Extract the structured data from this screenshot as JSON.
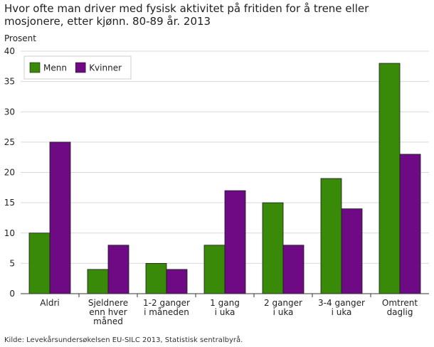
{
  "chart_data": {
    "type": "bar",
    "title": "Hvor ofte man driver med fysisk aktivitet på fritiden for å trene eller mosjonere, etter kjønn. 80-89 år. 2013",
    "ylabel": "Prosent",
    "xlabel": "",
    "ylim": [
      0,
      40
    ],
    "yticks": [
      0,
      5,
      10,
      15,
      20,
      25,
      30,
      35,
      40
    ],
    "grid": true,
    "legend_position": "top-left",
    "categories": [
      [
        "Aldri"
      ],
      [
        "Sjeldnere",
        "enn hver",
        "måned"
      ],
      [
        "1-2 ganger",
        "i måneden"
      ],
      [
        "1 gang",
        "i uka"
      ],
      [
        "2 ganger",
        "i uka"
      ],
      [
        "3-4 ganger",
        "i uka"
      ],
      [
        "Omtrent",
        "daglig"
      ]
    ],
    "series": [
      {
        "name": "Menn",
        "color": "#3a8a0a",
        "values": [
          10,
          4,
          5,
          8,
          15,
          19,
          38
        ]
      },
      {
        "name": "Kvinner",
        "color": "#6e0a84",
        "values": [
          25,
          8,
          4,
          17,
          8,
          14,
          23
        ]
      }
    ]
  },
  "source": "Kilde: Levekårsundersøkelsen EU-SILC 2013, Statistisk sentralbyrå."
}
